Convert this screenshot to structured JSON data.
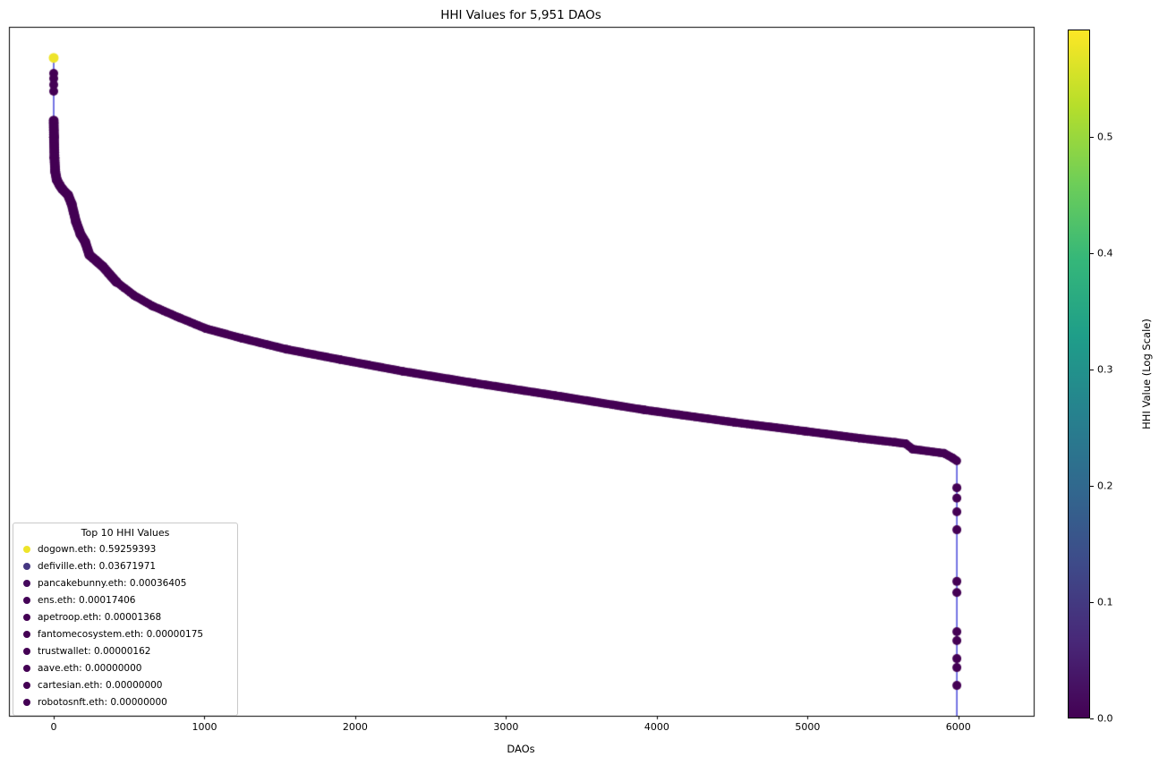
{
  "chart_data": {
    "type": "scatter",
    "title": "HHI Values for 5,951 DAOs",
    "xlabel": "DAOs",
    "ylabel": "",
    "n_points": 5951,
    "x_ticks": [
      0,
      1000,
      2000,
      3000,
      4000,
      5000,
      6000
    ],
    "y_axis": "unlabeled (log scale), no tick labels shown",
    "grid": false,
    "line_color": "#3a3ad9",
    "marker_color": "#440154",
    "top_point": {
      "rank": 0,
      "frac": 0.045,
      "color": "#eee42a",
      "label": "dogown.eth",
      "value": "0.59259393"
    },
    "profile": [
      [
        0,
        0.136
      ],
      [
        2,
        0.16
      ],
      [
        5,
        0.19
      ],
      [
        10,
        0.21
      ],
      [
        20,
        0.222
      ],
      [
        40,
        0.23
      ],
      [
        59,
        0.236
      ],
      [
        95,
        0.244
      ],
      [
        119,
        0.257
      ],
      [
        148,
        0.283
      ],
      [
        178,
        0.301
      ],
      [
        208,
        0.312
      ],
      [
        237,
        0.331
      ],
      [
        285,
        0.34
      ],
      [
        326,
        0.348
      ],
      [
        415,
        0.37
      ],
      [
        534,
        0.39
      ],
      [
        653,
        0.405
      ],
      [
        831,
        0.422
      ],
      [
        1009,
        0.438
      ],
      [
        1246,
        0.452
      ],
      [
        1543,
        0.468
      ],
      [
        1899,
        0.483
      ],
      [
        2315,
        0.5
      ],
      [
        2790,
        0.517
      ],
      [
        3324,
        0.535
      ],
      [
        3917,
        0.556
      ],
      [
        4510,
        0.574
      ],
      [
        4985,
        0.587
      ],
      [
        5341,
        0.597
      ],
      [
        5578,
        0.603
      ],
      [
        5650,
        0.605
      ],
      [
        5697,
        0.613
      ],
      [
        5905,
        0.619
      ],
      [
        5964,
        0.626
      ],
      [
        5990,
        0.63
      ]
    ],
    "end_drop": {
      "rank": 5990,
      "from_frac": 0.63,
      "to_frac": 1.0
    },
    "head_points": [
      0.0675,
      0.075,
      0.084,
      0.0935
    ],
    "tail_points": [
      0.669,
      0.684,
      0.704,
      0.73,
      0.805,
      0.821,
      0.878,
      0.891,
      0.917,
      0.93,
      0.956
    ],
    "legend": {
      "title": "Top 10 HHI Values",
      "entries": [
        {
          "name": "dogown.eth",
          "value": "0.59259393",
          "color": "#eee42a"
        },
        {
          "name": "defiville.eth",
          "value": "0.03671971",
          "color": "#453781"
        },
        {
          "name": "pancakebunny.eth",
          "value": "0.00036405",
          "color": "#45095d"
        },
        {
          "name": "ens.eth",
          "value": "0.00017406",
          "color": "#440357"
        },
        {
          "name": "apetroop.eth",
          "value": "0.00001368",
          "color": "#440154"
        },
        {
          "name": "fantomecosystem.eth",
          "value": "0.00000175",
          "color": "#440154"
        },
        {
          "name": "trustwallet",
          "value": "0.00000162",
          "color": "#440154"
        },
        {
          "name": "aave.eth",
          "value": "0.00000000",
          "color": "#440154"
        },
        {
          "name": "cartesian.eth",
          "value": "0.00000000",
          "color": "#440154"
        },
        {
          "name": "robotosnft.eth",
          "value": "0.00000000",
          "color": "#440154"
        }
      ]
    },
    "colorbar": {
      "label": "HHI Value (Log Scale)",
      "ticks": [
        "0.0",
        "0.1",
        "0.2",
        "0.3",
        "0.4",
        "0.5"
      ],
      "tick_values": [
        0.0,
        0.1,
        0.2,
        0.3,
        0.4,
        0.5
      ],
      "vmin": 0.0,
      "vmax": 0.59259393,
      "colormap": "viridis",
      "gradient": [
        "#440154",
        "#482878",
        "#3e4a89",
        "#31688e",
        "#26828e",
        "#1f9e89",
        "#35b779",
        "#6ece58",
        "#b5de2b",
        "#fde725"
      ]
    }
  }
}
